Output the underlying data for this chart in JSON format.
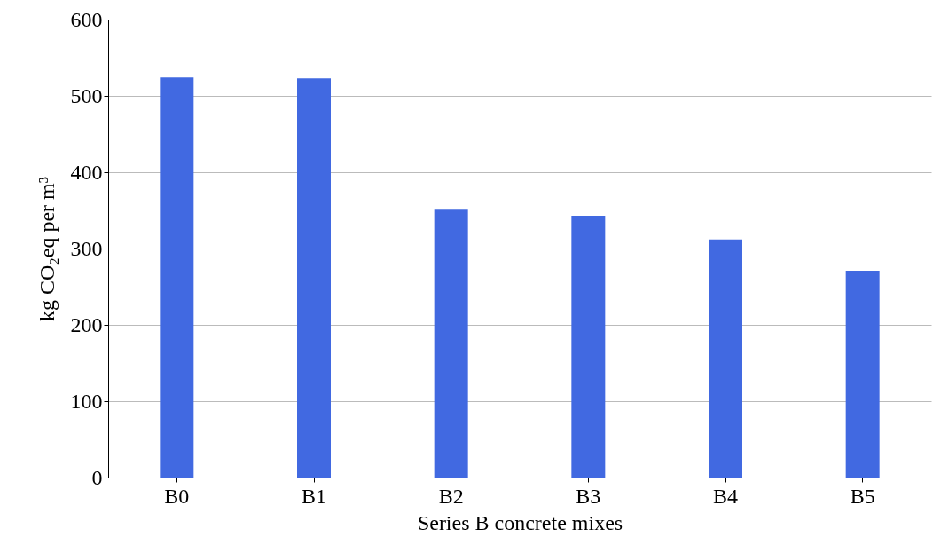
{
  "chart_data": {
    "type": "bar",
    "xlabel": "Series B concrete mixes",
    "ylabel": "kg CO₂eq per m³",
    "categories": [
      "B0",
      "B1",
      "B2",
      "B3",
      "B4",
      "B5"
    ],
    "values": [
      524,
      523,
      351,
      343,
      312,
      271
    ],
    "color": "#4169e1",
    "ylim": [
      0,
      600
    ],
    "yticks": [
      0,
      100,
      200,
      300,
      400,
      500,
      600
    ],
    "grid": "y"
  }
}
